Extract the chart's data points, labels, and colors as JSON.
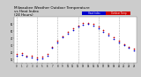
{
  "title": "Milwaukee Weather Outdoor Temperature\nvs Heat Index\n(24 Hours)",
  "title_fontsize": 3.0,
  "title_color": "black",
  "background_color": "#cccccc",
  "plot_bg_color": "#ffffff",
  "legend_blue_label": "Heat Index",
  "legend_red_label": "Outdoor Temp",
  "legend_color_blue": "#0000cc",
  "legend_color_red": "#cc0000",
  "hours": [
    0,
    1,
    2,
    3,
    4,
    5,
    6,
    7,
    8,
    9,
    10,
    11,
    12,
    13,
    14,
    15,
    16,
    17,
    18,
    19,
    20,
    21,
    22,
    23
  ],
  "temp": [
    18,
    19,
    16,
    15,
    13,
    14,
    18,
    28,
    36,
    43,
    49,
    54,
    58,
    61,
    62,
    60,
    56,
    51,
    46,
    41,
    36,
    32,
    28,
    25
  ],
  "heat_index": [
    16,
    17,
    14,
    13,
    11,
    12,
    16,
    26,
    34,
    41,
    47,
    52,
    56,
    59,
    60,
    58,
    54,
    49,
    44,
    39,
    34,
    30,
    26,
    23
  ],
  "ylim": [
    5,
    70
  ],
  "xlim": [
    -0.5,
    23.5
  ],
  "ytick_vals": [
    10,
    20,
    30,
    40,
    50,
    60
  ],
  "xtick_vals": [
    0,
    1,
    2,
    3,
    4,
    5,
    6,
    7,
    8,
    9,
    10,
    11,
    12,
    13,
    14,
    15,
    16,
    17,
    18,
    19,
    20,
    21,
    22,
    23
  ],
  "xtick_labels": [
    "0",
    "1",
    "2",
    "3",
    "4",
    "5",
    "6",
    "7",
    "8",
    "9",
    "10",
    "11",
    "12",
    "13",
    "14",
    "15",
    "16",
    "17",
    "18",
    "19",
    "20",
    "21",
    "22",
    "23"
  ],
  "ytick_labels": [
    "10",
    "20",
    "30",
    "40",
    "50",
    "60"
  ],
  "grid_color": "#aaaaaa",
  "dot_size": 1.5,
  "vgrid_hours": [
    0,
    4,
    8,
    12,
    16,
    20
  ]
}
